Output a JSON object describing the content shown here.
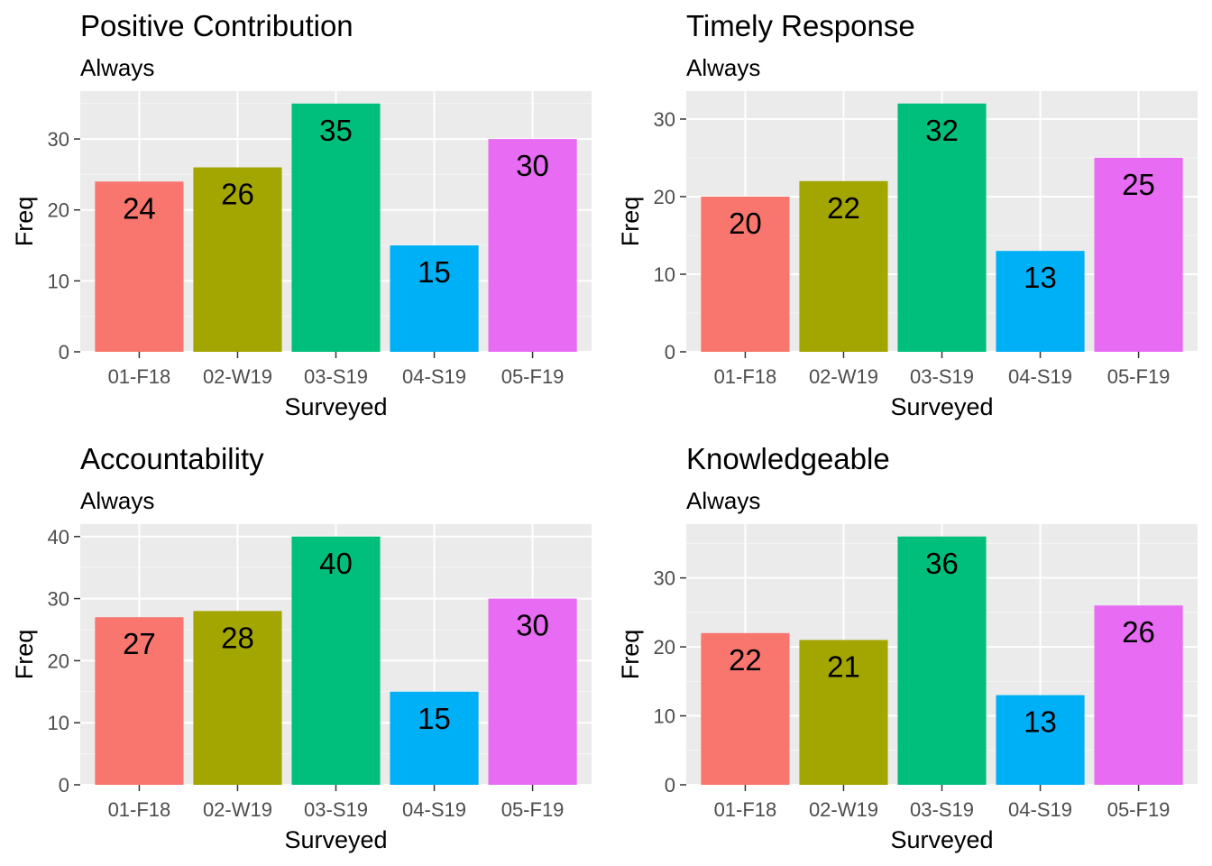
{
  "chart_data": [
    {
      "type": "bar",
      "title": "Positive Contribution",
      "subtitle": "Always",
      "xlabel": "Surveyed",
      "ylabel": "Freq",
      "categories": [
        "01-F18",
        "02-W19",
        "03-S19",
        "04-S19",
        "05-F19"
      ],
      "values": [
        24,
        26,
        35,
        15,
        30
      ],
      "colors": [
        "#F8766D",
        "#A3A500",
        "#00BF7D",
        "#00B0F6",
        "#E76BF3"
      ],
      "ylim": [
        0,
        36.75
      ],
      "yticks": [
        0,
        10,
        20,
        30
      ],
      "grid": true,
      "legend": "none"
    },
    {
      "type": "bar",
      "title": "Timely Response",
      "subtitle": "Always",
      "xlabel": "Surveyed",
      "ylabel": "Freq",
      "categories": [
        "01-F18",
        "02-W19",
        "03-S19",
        "04-S19",
        "05-F19"
      ],
      "values": [
        20,
        22,
        32,
        13,
        25
      ],
      "colors": [
        "#F8766D",
        "#A3A500",
        "#00BF7D",
        "#00B0F6",
        "#E76BF3"
      ],
      "ylim": [
        0,
        33.6
      ],
      "yticks": [
        0,
        10,
        20,
        30
      ],
      "grid": true,
      "legend": "none"
    },
    {
      "type": "bar",
      "title": "Accountability",
      "subtitle": "Always",
      "xlabel": "Surveyed",
      "ylabel": "Freq",
      "categories": [
        "01-F18",
        "02-W19",
        "03-S19",
        "04-S19",
        "05-F19"
      ],
      "values": [
        27,
        28,
        40,
        15,
        30
      ],
      "colors": [
        "#F8766D",
        "#A3A500",
        "#00BF7D",
        "#00B0F6",
        "#E76BF3"
      ],
      "ylim": [
        0,
        42
      ],
      "yticks": [
        0,
        10,
        20,
        30,
        40
      ],
      "grid": true,
      "legend": "none"
    },
    {
      "type": "bar",
      "title": "Knowledgeable",
      "subtitle": "Always",
      "xlabel": "Surveyed",
      "ylabel": "Freq",
      "categories": [
        "01-F18",
        "02-W19",
        "03-S19",
        "04-S19",
        "05-F19"
      ],
      "values": [
        22,
        21,
        36,
        13,
        26
      ],
      "colors": [
        "#F8766D",
        "#A3A500",
        "#00BF7D",
        "#00B0F6",
        "#E76BF3"
      ],
      "ylim": [
        0,
        37.8
      ],
      "yticks": [
        0,
        10,
        20,
        30
      ],
      "grid": true,
      "legend": "none"
    }
  ],
  "theme": {
    "panel_background": "#EBEBEB",
    "grid_major": "#FFFFFF",
    "tick_text": "#4D4D4D",
    "tick_mark": "#333333"
  }
}
